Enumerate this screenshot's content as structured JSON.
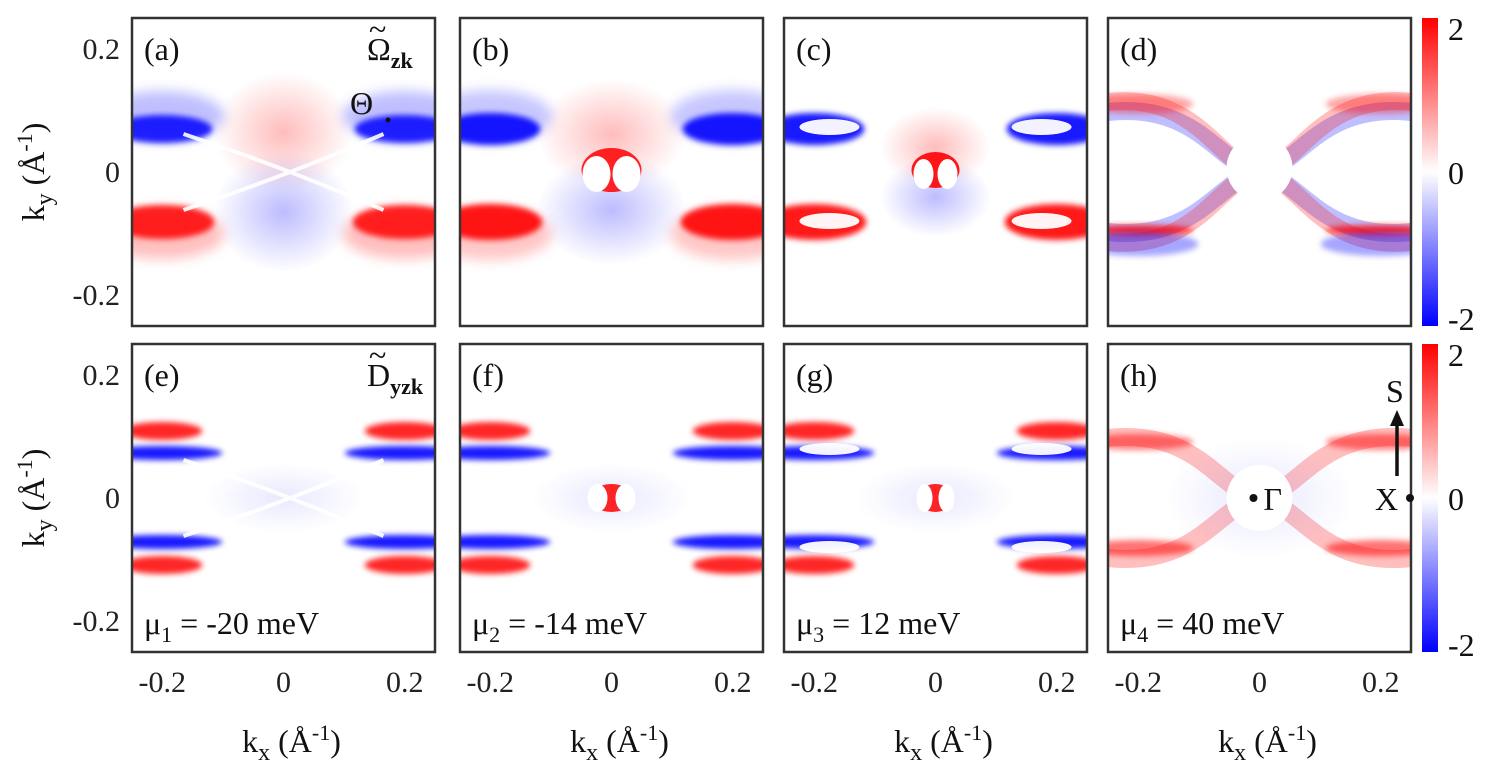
{
  "chart_data": {
    "type": "heatmap",
    "grid": {
      "rows": 2,
      "cols": 4
    },
    "xlabel": {
      "main": "k",
      "sub": "x",
      "open": " (Å",
      "sup": "-1",
      "close": ")"
    },
    "ylabel": {
      "main": "k",
      "sub": "y",
      "open": " (Å",
      "sup": "-1",
      "close": ")"
    },
    "xlim": [
      -0.25,
      0.25
    ],
    "ylim": [
      -0.25,
      0.25
    ],
    "xticks": [
      {
        "value": -0.2,
        "label": "-0.2"
      },
      {
        "value": 0,
        "label": "0"
      },
      {
        "value": 0.2,
        "label": "0.2"
      }
    ],
    "yticks": [
      {
        "value": 0.2,
        "label": "0.2"
      },
      {
        "value": 0,
        "label": "0"
      },
      {
        "value": -0.2,
        "label": "-0.2"
      }
    ],
    "colorbar": {
      "range": [
        -2,
        2
      ],
      "ticks": [
        "2",
        "0",
        "-2"
      ],
      "colors": {
        "min": "#0000ff",
        "mid": "#ffffff",
        "max": "#ff0000"
      }
    },
    "rows": [
      {
        "quantity": {
          "main": "Ω",
          "mark": "~",
          "sub": "zk"
        }
      },
      {
        "quantity": {
          "main": "D",
          "mark": "~",
          "sub": "yzk"
        }
      }
    ],
    "panels": [
      {
        "tag": "(a)",
        "row": 0,
        "col": 0,
        "style": "a",
        "annot": {
          "theta": "Θ"
        }
      },
      {
        "tag": "(b)",
        "row": 0,
        "col": 1,
        "style": "b"
      },
      {
        "tag": "(c)",
        "row": 0,
        "col": 2,
        "style": "c"
      },
      {
        "tag": "(d)",
        "row": 0,
        "col": 3,
        "style": "d"
      },
      {
        "tag": "(e)",
        "row": 1,
        "col": 0,
        "style": "e",
        "mu": {
          "main": "μ",
          "sub": "1",
          "text": " = -20 meV"
        }
      },
      {
        "tag": "(f)",
        "row": 1,
        "col": 1,
        "style": "f",
        "mu": {
          "main": "μ",
          "sub": "2",
          "text": " = -14 meV"
        }
      },
      {
        "tag": "(g)",
        "row": 1,
        "col": 2,
        "style": "g",
        "mu": {
          "main": "μ",
          "sub": "3",
          "text": " = 12 meV"
        }
      },
      {
        "tag": "(h)",
        "row": 1,
        "col": 3,
        "style": "h",
        "mu": {
          "main": "μ",
          "sub": "4",
          "text": " = 40 meV"
        },
        "points": [
          {
            "label": "Γ",
            "kx": 0,
            "ky": 0
          },
          {
            "label": "X",
            "kx": 0.25,
            "ky": 0
          },
          {
            "label": "S",
            "kx": 0.25,
            "ky": 0.25
          }
        ]
      }
    ]
  }
}
